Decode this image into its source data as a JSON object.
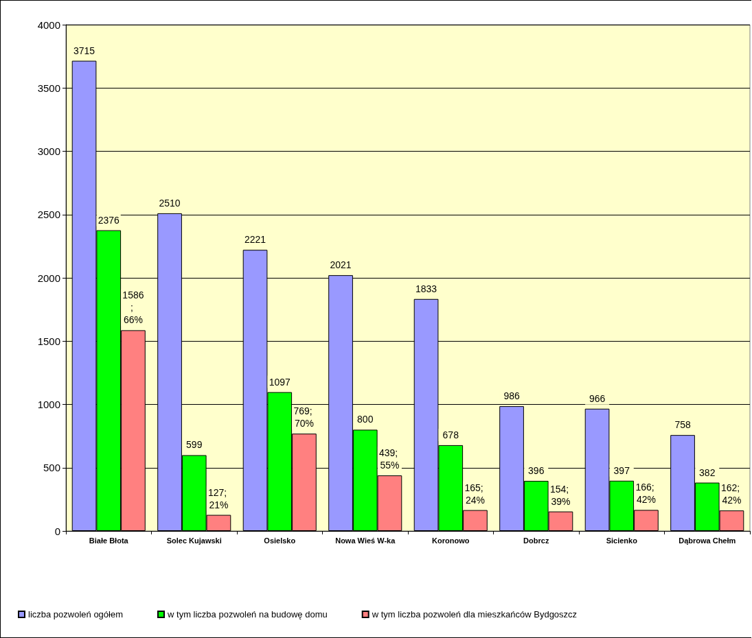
{
  "chart_data": {
    "type": "bar",
    "categories": [
      "Białe Błota",
      "Solec Kujawski",
      "Osielsko",
      "Nowa Wieś W-ka",
      "Koronowo",
      "Dobrcz",
      "Sicienko",
      "Dąbrowa Chełm"
    ],
    "series": [
      {
        "name": "liczba pozwoleń ogółem",
        "color": "#9999ff",
        "values": [
          3715,
          2510,
          2221,
          2021,
          1833,
          986,
          966,
          758
        ],
        "value_labels": [
          "3715",
          "2510",
          "2221",
          "2021",
          "1833",
          "986",
          "966",
          "758"
        ]
      },
      {
        "name": "w tym liczba pozwoleń na budowę domu",
        "color": "#00ff00",
        "values": [
          2376,
          599,
          1097,
          800,
          678,
          396,
          397,
          382
        ],
        "value_labels": [
          "2376",
          "599",
          "1097",
          "800",
          "678",
          "396",
          "397",
          "382"
        ]
      },
      {
        "name": "w tym liczba pozwoleń dla mieszkańców Bydgoszcz",
        "color": "#ff8080",
        "values": [
          1586,
          127,
          769,
          439,
          165,
          154,
          166,
          162
        ],
        "value_labels": [
          "1586; 66%",
          "127; 21%",
          "769; 70%",
          "439; 55%",
          "165; 24%",
          "154; 39%",
          "166; 42%",
          "162; 42%"
        ]
      }
    ],
    "ylim": [
      0,
      4000
    ],
    "yticks": [
      0,
      500,
      1000,
      1500,
      2000,
      2500,
      3000,
      3500,
      4000
    ],
    "grid": "y",
    "legend": "bottom left"
  }
}
